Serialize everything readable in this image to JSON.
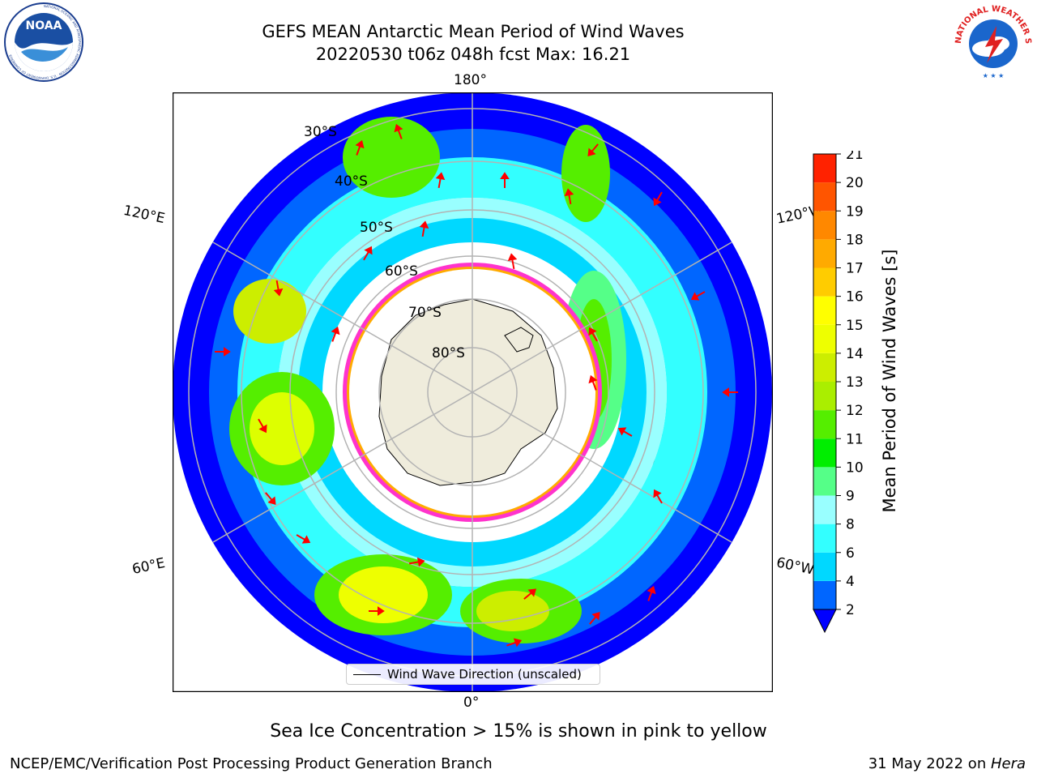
{
  "title": {
    "line1": "GEFS MEAN Antarctic Mean Period of Wind Waves",
    "line2": "20220530 t06z 048h fcst   Max: 16.21"
  },
  "logos": {
    "noaa": {
      "text": "NOAA",
      "ring_text": "NATIONAL OCEANIC AND ATMOSPHERIC ADMINISTRATION · U.S. DEPARTMENT OF COMMERCE"
    },
    "nws": {
      "ring_text": "NATIONAL WEATHER SERVICE"
    }
  },
  "map": {
    "projection": "south-polar-stereographic",
    "longitude_labels": {
      "top": "180°",
      "bottom": "0°",
      "upper_left": "120°E",
      "upper_right": "120°W",
      "lower_left": "60°E",
      "lower_right": "60°W"
    },
    "latitude_labels": [
      "30°S",
      "40°S",
      "50°S",
      "60°S",
      "70°S",
      "80°S"
    ],
    "colors": {
      "land": "#efecdc",
      "grid": "#b3b3b3",
      "arrow": "#ff0000",
      "sea_ice_edge": "#ff33cc"
    }
  },
  "colorbar": {
    "label": "Mean Period of Wind Waves [s]",
    "ticks": [
      "2",
      "4",
      "6",
      "8",
      "9",
      "10",
      "11",
      "12",
      "13",
      "14",
      "15",
      "16",
      "17",
      "18",
      "19",
      "20",
      "21"
    ],
    "colors": [
      "#0066ff",
      "#00d8ff",
      "#33ffff",
      "#99ffff",
      "#55ff88",
      "#00ee00",
      "#55ee00",
      "#aaee00",
      "#ccee00",
      "#eeff00",
      "#ffff00",
      "#ffcc00",
      "#ffaa00",
      "#ff8800",
      "#ff5500",
      "#ff2200"
    ],
    "extend_color": "#0000ff"
  },
  "legend": {
    "label": "Wind Wave Direction (unscaled)"
  },
  "note": "Sea Ice Concentration > 15% is shown in pink to yellow",
  "footer": {
    "left": "NCEP/EMC/Verification Post Processing Product Generation Branch",
    "right_date": "31 May 2022 on ",
    "right_system": "Hera"
  }
}
